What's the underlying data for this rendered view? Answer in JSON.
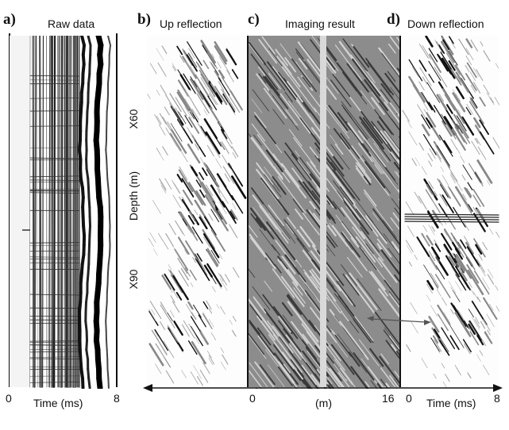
{
  "panels": {
    "a": {
      "letter": "a)",
      "title": "Raw data",
      "x_start": "0",
      "x_end": "8",
      "x_label": "Time (ms)"
    },
    "b": {
      "letter": "b)",
      "title": "Up reflection"
    },
    "c": {
      "letter": "c)",
      "title": "Imaging result",
      "x_start": "0",
      "x_unit": "(m)",
      "x_end": "16"
    },
    "d": {
      "letter": "d)",
      "title": "Down reflection",
      "x_start": "0",
      "x_label": "Time (ms)",
      "x_end": "8"
    }
  },
  "depth_axis": {
    "label": "Depth (m)",
    "ticks": [
      "X60",
      "X90"
    ]
  },
  "colors": {
    "ink": "#111111",
    "gray_background": "#8c8c8c",
    "white_stripe": "#d9d9d9",
    "arrow": "#555555"
  }
}
